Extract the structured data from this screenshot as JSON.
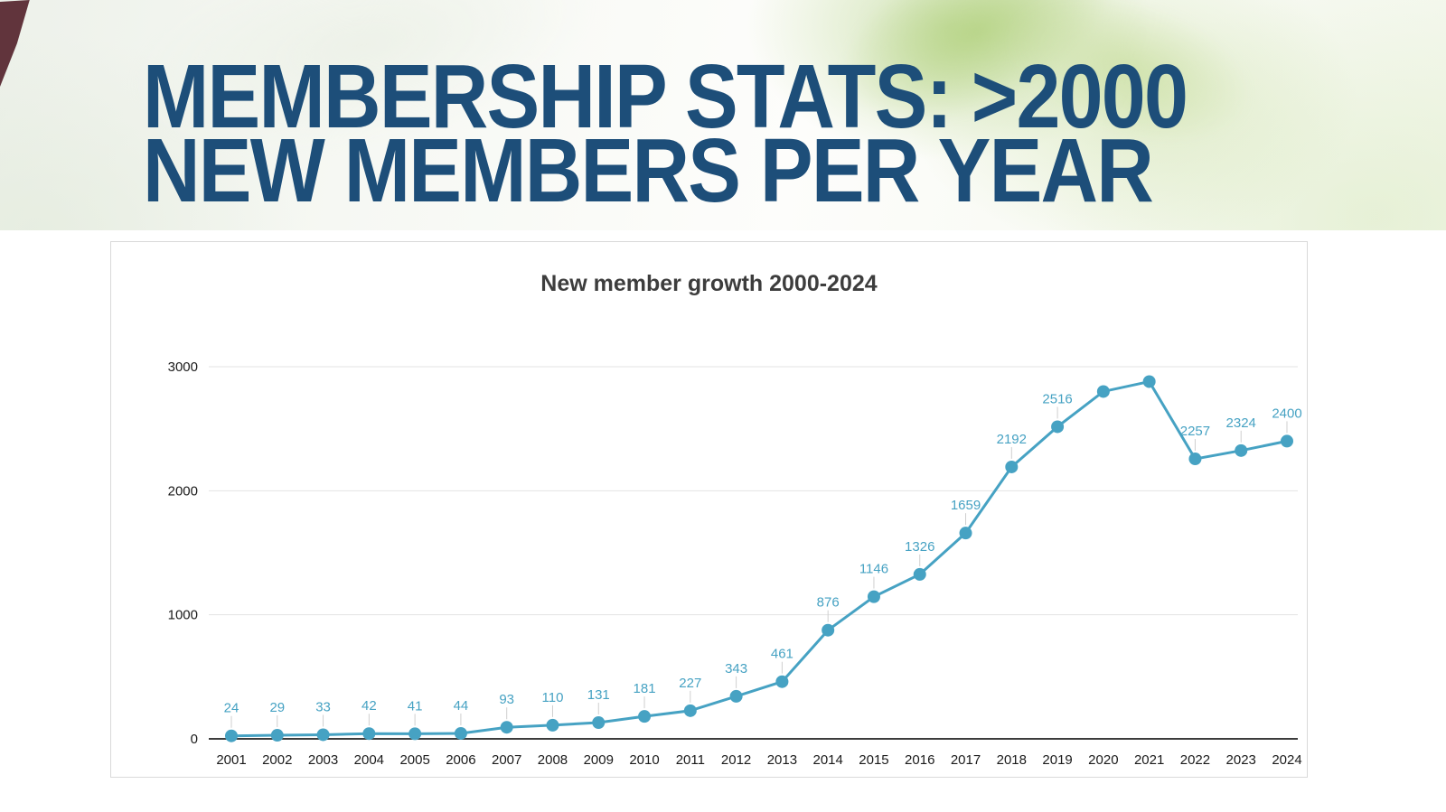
{
  "header": {
    "title_line1": "MEMBERSHIP STATS: >2000",
    "title_line2": "NEW MEMBERS PER YEAR",
    "title_color": "#1d4e79"
  },
  "chart_data": {
    "type": "line",
    "title": "New member growth 2000-2024",
    "x": [
      "2001",
      "2002",
      "2003",
      "2004",
      "2005",
      "2006",
      "2007",
      "2008",
      "2009",
      "2010",
      "2011",
      "2012",
      "2013",
      "2014",
      "2015",
      "2016",
      "2017",
      "2018",
      "2019",
      "2020",
      "2021",
      "2022",
      "2023",
      "2024"
    ],
    "values": [
      24,
      29,
      33,
      42,
      41,
      44,
      93,
      110,
      131,
      181,
      227,
      343,
      461,
      876,
      1146,
      1326,
      1659,
      2192,
      2516,
      2800,
      2880,
      2257,
      2324,
      2400
    ],
    "point_labels": [
      "24",
      "29",
      "33",
      "42",
      "41",
      "44",
      "93",
      "110",
      "131",
      "181",
      "227",
      "343",
      "461",
      "876",
      "1146",
      "1326",
      "1659",
      "2192",
      "2516",
      "",
      "",
      "2257",
      "2324",
      "2400"
    ],
    "y_ticks": [
      0,
      1000,
      2000,
      3000
    ],
    "ylim": [
      0,
      3000
    ],
    "xlabel": "",
    "ylabel": "",
    "grid": true,
    "legend_position": "none",
    "line_color": "#46a2c3",
    "marker_color": "#46a2c3",
    "label_color": "#46a2c3",
    "axis_text_color": "#1a1a1a",
    "grid_color": "#e3e3e3",
    "axis_line_color": "#3c3c3c"
  }
}
